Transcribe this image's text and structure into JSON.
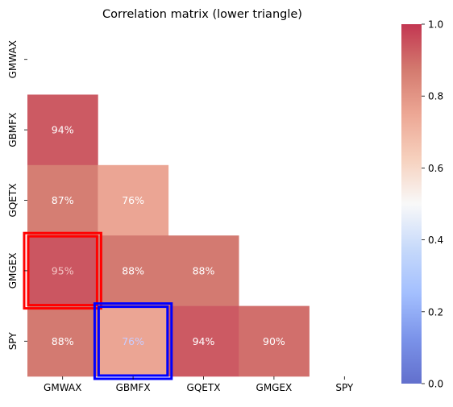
{
  "chart_data": {
    "type": "heatmap",
    "title": "Correlation matrix (lower triangle)",
    "xlabel": "",
    "ylabel": "",
    "labels": [
      "GMWAX",
      "GBMFX",
      "GQETX",
      "GMGEX",
      "SPY"
    ],
    "value_format": "percent",
    "cells": [
      {
        "row": "GBMFX",
        "col": "GMWAX",
        "value": 0.94
      },
      {
        "row": "GQETX",
        "col": "GMWAX",
        "value": 0.87
      },
      {
        "row": "GQETX",
        "col": "GBMFX",
        "value": 0.76
      },
      {
        "row": "GMGEX",
        "col": "GMWAX",
        "value": 0.95
      },
      {
        "row": "GMGEX",
        "col": "GBMFX",
        "value": 0.88
      },
      {
        "row": "GMGEX",
        "col": "GQETX",
        "value": 0.88
      },
      {
        "row": "SPY",
        "col": "GMWAX",
        "value": 0.88
      },
      {
        "row": "SPY",
        "col": "GBMFX",
        "value": 0.76
      },
      {
        "row": "SPY",
        "col": "GQETX",
        "value": 0.94
      },
      {
        "row": "SPY",
        "col": "GMGEX",
        "value": 0.9
      }
    ],
    "masked": "upper triangle including diagonal",
    "colormap": "coolwarm",
    "color_range": [
      0.0,
      1.0
    ],
    "colorbar_ticks": [
      "0.0",
      "0.2",
      "0.4",
      "0.6",
      "0.8",
      "1.0"
    ],
    "highlights": [
      {
        "row": "GMGEX",
        "col": "GMWAX",
        "color": "#ff0000"
      },
      {
        "row": "SPY",
        "col": "GBMFX",
        "color": "#0000ff"
      }
    ],
    "grid": false
  }
}
